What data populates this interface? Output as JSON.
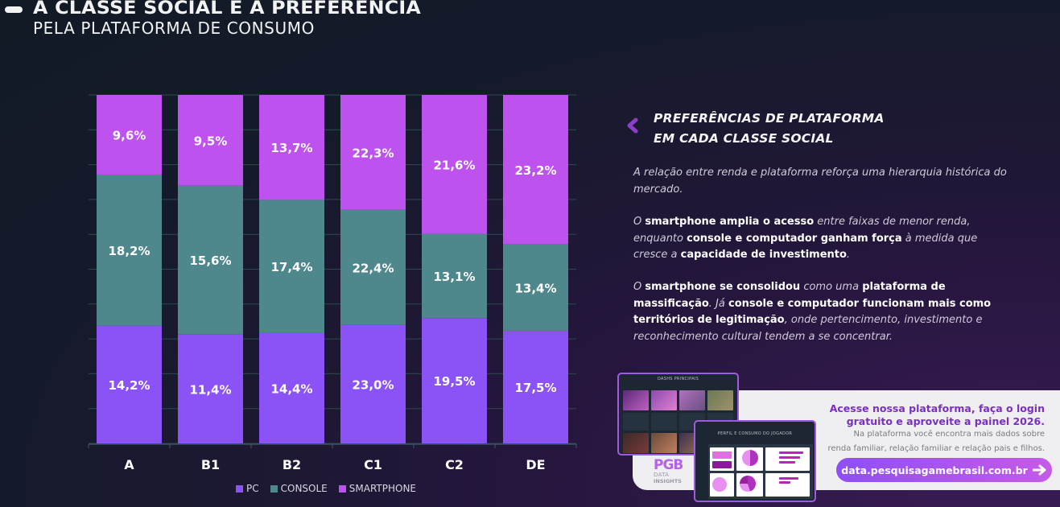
{
  "header": {
    "title_line1": "A CLASSE SOCIAL E A PREFERÊNCIA",
    "title_line2": "PELA PLATAFORMA DE CONSUMO"
  },
  "colors": {
    "pc": "#8b52f6",
    "console": "#4e878c",
    "smartphone": "#bd52ef",
    "accent": "#7a2fbf"
  },
  "chart_data": {
    "type": "bar",
    "stacked": true,
    "normalized": true,
    "categories": [
      "A",
      "B1",
      "B2",
      "C1",
      "C2",
      "DE"
    ],
    "series": [
      {
        "name": "PC",
        "values": [
          14.2,
          11.4,
          14.4,
          23.0,
          19.5,
          17.5
        ],
        "labels": [
          "14,2%",
          "11,4%",
          "14,4%",
          "23,0%",
          "19,5%",
          "17,5%"
        ]
      },
      {
        "name": "CONSOLE",
        "values": [
          18.2,
          15.6,
          17.4,
          22.4,
          13.1,
          13.4
        ],
        "labels": [
          "18,2%",
          "15,6%",
          "17,4%",
          "22,4%",
          "13,1%",
          "13,4%"
        ]
      },
      {
        "name": "SMARTPHONE",
        "values": [
          9.6,
          9.5,
          13.7,
          22.3,
          21.6,
          23.2
        ],
        "labels": [
          "9,6%",
          "9,5%",
          "13,7%",
          "22,3%",
          "21,6%",
          "23,2%"
        ]
      }
    ],
    "legend": [
      "PC",
      "CONSOLE",
      "SMARTPHONE"
    ],
    "legend_position": "bottom",
    "grid": true,
    "title": "",
    "xlabel": "",
    "ylabel": ""
  },
  "side": {
    "title_line1": "PREFERÊNCIAS DE PLATAFORMA",
    "title_line2": "EM CADA CLASSE SOCIAL",
    "p1": "A relação entre renda e plataforma reforça uma hierarquia histórica do mercado.",
    "p2": [
      {
        "t": "O ",
        "b": false
      },
      {
        "t": "smartphone amplia o acesso",
        "b": true
      },
      {
        "t": " entre faixas de menor renda, enquanto ",
        "b": false
      },
      {
        "t": "console e computador ganham força",
        "b": true
      },
      {
        "t": " à medida que cresce a ",
        "b": false
      },
      {
        "t": "capacidade de investimento",
        "b": true
      },
      {
        "t": ".",
        "b": false
      }
    ],
    "p3": [
      {
        "t": "O ",
        "b": false
      },
      {
        "t": "smartphone se consolidou",
        "b": true
      },
      {
        "t": " como uma ",
        "b": false
      },
      {
        "t": "plataforma de massificação",
        "b": true
      },
      {
        "t": ". Já ",
        "b": false
      },
      {
        "t": "console e computador funcionam mais como territórios de legitimação",
        "b": true
      },
      {
        "t": ", onde pertencimento, investimento e reconhecimento cultural tendem a se concentrar.",
        "b": false
      }
    ]
  },
  "promo": {
    "title_line1": "Acesse nossa plataforma, faça o login",
    "title_line2": "gratuito e aproveite a painel 2026.",
    "sub_line1": "Na plataforma você encontra mais dados sobre",
    "sub_line2": "renda familiar, relação familiar e relação pais e filhos.",
    "button_label": "data.pesquisagamebrasil.com.br",
    "shot1_title": "DASHS PRINCIPAIS",
    "shot2_title": "PERFIL E CONSUMO DO JOGADOR",
    "logo_pg": "PGB",
    "logo_data": "DATA",
    "logo_insights": "INSIGHTS"
  }
}
